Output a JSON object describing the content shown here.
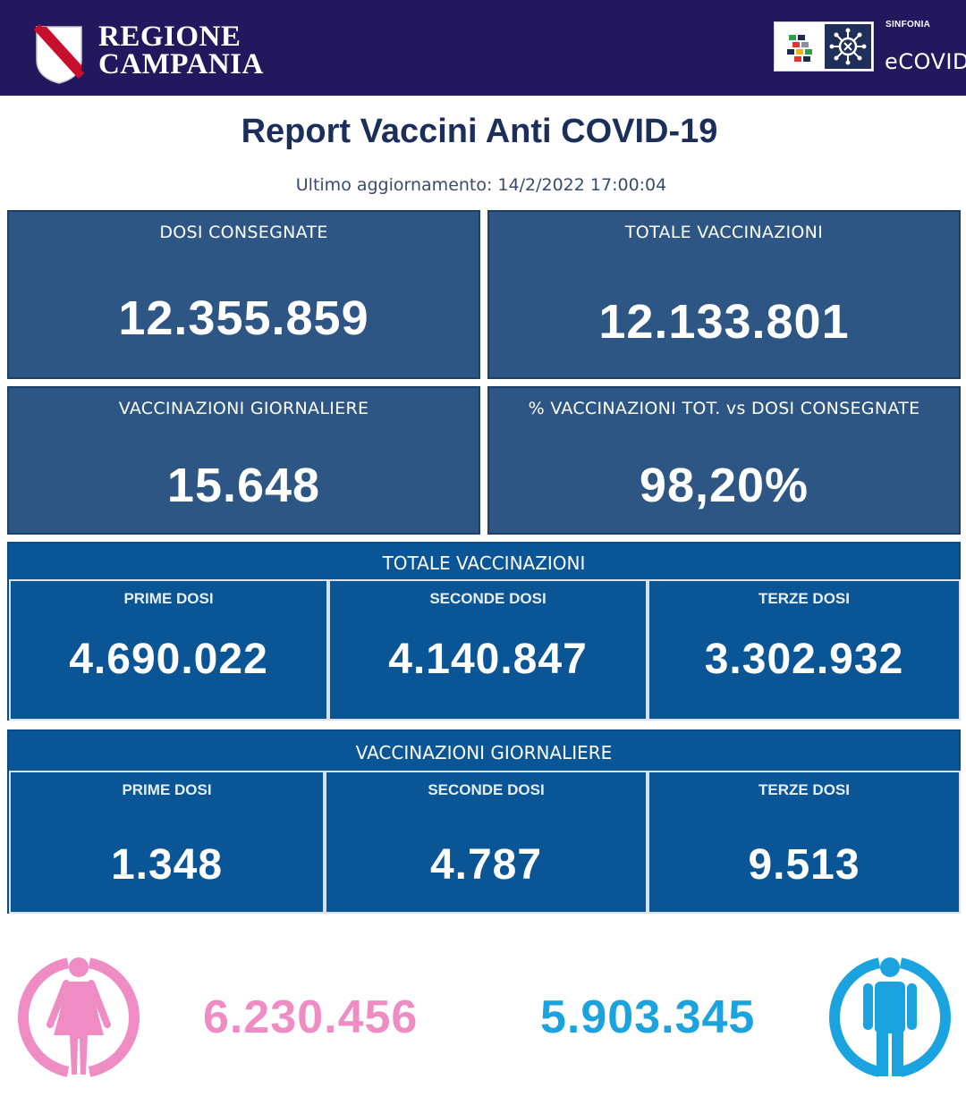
{
  "header": {
    "brand_line1": "REGIONE",
    "brand_line2": "CAMPANIA",
    "partner_top": "SINFONIA",
    "partner_name": "eCOVID"
  },
  "title": "Report Vaccini Anti COVID-19",
  "updated": "Ultimo aggiornamento: 14/2/2022  17:00:04",
  "tiles": [
    {
      "label": "DOSI  CONSEGNATE",
      "value": "12.355.859"
    },
    {
      "label": "TOTALE VACCINAZIONI",
      "value": "12.133.801"
    },
    {
      "label": "VACCINAZIONI GIORNALIERE",
      "value": "15.648"
    },
    {
      "label": "% VACCINAZIONI TOT. vs DOSI CONSEGNATE",
      "value": "98,20%"
    }
  ],
  "totale_panel": {
    "heading": "TOTALE VACCINAZIONI",
    "cells": [
      {
        "label": "PRIME DOSI",
        "value": "4.690.022"
      },
      {
        "label": "SECONDE DOSI",
        "value": "4.140.847"
      },
      {
        "label": "TERZE DOSI",
        "value": "3.302.932"
      }
    ]
  },
  "giornaliere_panel": {
    "heading": "VACCINAZIONI GIORNALIERE",
    "cells": [
      {
        "label": "PRIME DOSI",
        "value": "1.348"
      },
      {
        "label": "SECONDE DOSI",
        "value": "4.787"
      },
      {
        "label": "TERZE DOSI",
        "value": "9.513"
      }
    ]
  },
  "gender": {
    "female_value": "6.230.456",
    "male_value": "5.903.345",
    "female_color": "#f08cc4",
    "male_color": "#1aa3df",
    "female_icon": "female-person-icon",
    "male_icon": "male-person-icon"
  },
  "colors": {
    "header_bg": "#23185e",
    "title": "#1c2f5c",
    "tile_bg": "#2d5685",
    "panel_bg": "#0a5596"
  }
}
